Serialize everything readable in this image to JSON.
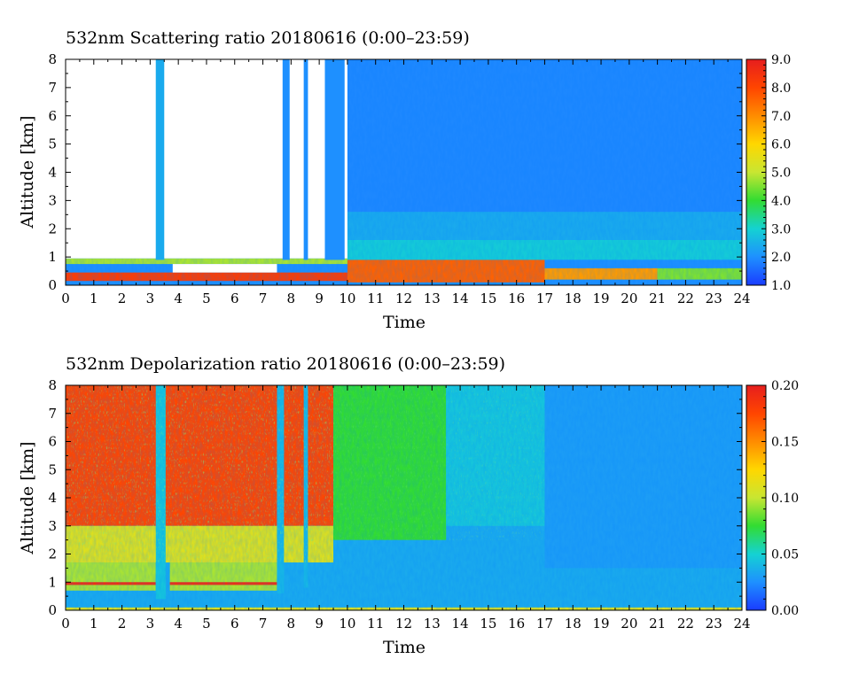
{
  "panels": [
    {
      "title": "532nm Scattering ratio  20180616 (0:00–23:59)",
      "xlabel": "Time",
      "ylabel": "Altitude [km]",
      "xticks": [
        "0",
        "1",
        "2",
        "3",
        "4",
        "5",
        "6",
        "7",
        "8",
        "9",
        "10",
        "11",
        "12",
        "13",
        "14",
        "15",
        "16",
        "17",
        "18",
        "19",
        "20",
        "21",
        "22",
        "23",
        "24"
      ],
      "yticks": [
        "0",
        "1",
        "2",
        "3",
        "4",
        "5",
        "6",
        "7",
        "8"
      ],
      "colorbar_ticks": [
        "1.0",
        "2.0",
        "3.0",
        "4.0",
        "5.0",
        "6.0",
        "7.0",
        "8.0",
        "9.0"
      ]
    },
    {
      "title": "532nm Depolarization ratio  20180616 (0:00–23:59)",
      "xlabel": "Time",
      "ylabel": "Altitude [km]",
      "xticks": [
        "0",
        "1",
        "2",
        "3",
        "4",
        "5",
        "6",
        "7",
        "8",
        "9",
        "10",
        "11",
        "12",
        "13",
        "14",
        "15",
        "16",
        "17",
        "18",
        "19",
        "20",
        "21",
        "22",
        "23",
        "24"
      ],
      "yticks": [
        "0",
        "1",
        "2",
        "3",
        "4",
        "5",
        "6",
        "7",
        "8"
      ],
      "colorbar_ticks": [
        "0.00",
        "0.05",
        "0.10",
        "0.15",
        "0.20"
      ]
    }
  ],
  "chart_data": [
    {
      "type": "heatmap",
      "title": "532nm Scattering ratio  20180616 (0:00–23:59)",
      "xlabel": "Time",
      "ylabel": "Altitude [km]",
      "xlim": [
        0,
        24
      ],
      "ylim": [
        0,
        8
      ],
      "colorbar": {
        "min": 1.0,
        "max": 9.0,
        "colors": [
          "#1a3cff",
          "#1e90ff",
          "#14d2d2",
          "#32dc32",
          "#c8e632",
          "#ffd700",
          "#ff8c00",
          "#ff4500",
          "#e61e1e"
        ]
      },
      "background_value": 2.0,
      "no_data_color": "#ffffff",
      "no_data_regions": [
        {
          "x": [
            0,
            10
          ],
          "y": [
            0.95,
            8
          ]
        },
        {
          "x": [
            3.8,
            7.5
          ],
          "y": [
            0.45,
            0.75
          ]
        }
      ],
      "features": [
        {
          "x": [
            0,
            10
          ],
          "y": [
            0.15,
            0.45
          ],
          "value": 8.2
        },
        {
          "x": [
            10,
            17
          ],
          "y": [
            0.1,
            0.9
          ],
          "value": 7.6
        },
        {
          "x": [
            17,
            21
          ],
          "y": [
            0.2,
            0.6
          ],
          "value": 6.8
        },
        {
          "x": [
            21,
            24
          ],
          "y": [
            0.2,
            0.6
          ],
          "value": 4.5
        },
        {
          "x": [
            0,
            10
          ],
          "y": [
            0.75,
            0.95
          ],
          "value": 4.8
        },
        {
          "x": [
            17,
            18.8
          ],
          "y": [
            1.45,
            1.75
          ],
          "value": 4.0
        },
        {
          "x": [
            3.2,
            3.5
          ],
          "y": [
            0.9,
            8.0
          ],
          "value": 2.4
        },
        {
          "x": [
            3.3,
            3.5
          ],
          "y": [
            1.3,
            1.7
          ],
          "value": 3.3
        },
        {
          "x": [
            7.7,
            7.95
          ],
          "y": [
            0.9,
            8.0
          ],
          "value": 2.0
        },
        {
          "x": [
            8.45,
            8.6
          ],
          "y": [
            0.9,
            8.0
          ],
          "value": 2.0
        },
        {
          "x": [
            9.2,
            9.9
          ],
          "y": [
            0.9,
            8.0
          ],
          "value": 2.0
        },
        {
          "x": [
            10,
            24
          ],
          "y": [
            0.9,
            1.6
          ],
          "value": 2.9
        },
        {
          "x": [
            10,
            24
          ],
          "y": [
            1.6,
            2.6
          ],
          "value": 2.4
        },
        {
          "x": [
            10,
            24
          ],
          "y": [
            2.6,
            8.0
          ],
          "value": 1.9
        }
      ]
    },
    {
      "type": "heatmap",
      "title": "532nm Depolarization ratio  20180616 (0:00–23:59)",
      "xlabel": "Time",
      "ylabel": "Altitude [km]",
      "xlim": [
        0,
        24
      ],
      "ylim": [
        0,
        8
      ],
      "colorbar": {
        "min": 0.0,
        "max": 0.2,
        "colors": [
          "#1a3cff",
          "#1e90ff",
          "#14d2d2",
          "#32dc32",
          "#c8e632",
          "#ffd700",
          "#ff8c00",
          "#ff4500",
          "#e61e1e"
        ]
      },
      "background_value": 0.035,
      "features": [
        {
          "x": [
            0,
            9.5
          ],
          "y": [
            3.0,
            8.0
          ],
          "value": 0.175
        },
        {
          "x": [
            0,
            9.5
          ],
          "y": [
            1.7,
            3.0
          ],
          "value": 0.11
        },
        {
          "x": [
            0,
            3.2
          ],
          "y": [
            0.7,
            1.7
          ],
          "value": 0.095
        },
        {
          "x": [
            3.7,
            7.5
          ],
          "y": [
            0.7,
            1.7
          ],
          "value": 0.095
        },
        {
          "x": [
            0,
            3.2
          ],
          "y": [
            0.9,
            1.0
          ],
          "value": 0.19
        },
        {
          "x": [
            3.7,
            7.5
          ],
          "y": [
            0.9,
            1.0
          ],
          "value": 0.19
        },
        {
          "x": [
            3.2,
            3.55
          ],
          "y": [
            0.4,
            8.0
          ],
          "value": 0.045
        },
        {
          "x": [
            7.5,
            7.75
          ],
          "y": [
            0.6,
            8.0
          ],
          "value": 0.04
        },
        {
          "x": [
            8.45,
            8.6
          ],
          "y": [
            0.8,
            8.0
          ],
          "value": 0.04
        },
        {
          "x": [
            9.5,
            13.5
          ],
          "y": [
            2.5,
            8.0
          ],
          "value": 0.075
        },
        {
          "x": [
            13.5,
            17
          ],
          "y": [
            3.0,
            8.0
          ],
          "value": 0.045
        },
        {
          "x": [
            17,
            24
          ],
          "y": [
            1.5,
            8.0
          ],
          "value": 0.03
        },
        {
          "x": [
            0,
            24
          ],
          "y": [
            0.0,
            0.1
          ],
          "value": 0.11
        }
      ]
    }
  ]
}
